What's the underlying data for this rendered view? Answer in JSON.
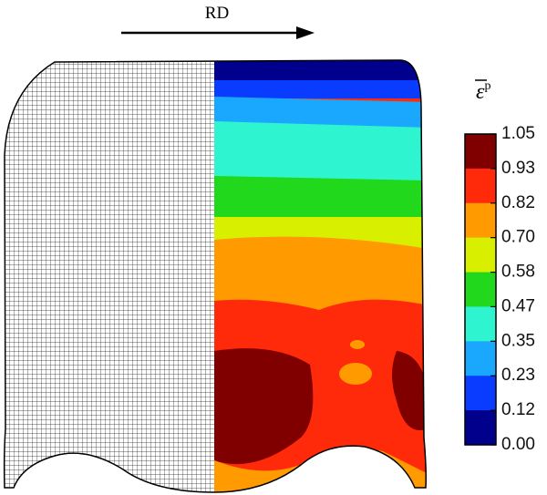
{
  "label": "RD",
  "colorbar": {
    "title_symbol": "ε",
    "title_superscript": "p",
    "ticks": [
      "1.05",
      "0.93",
      "0.82",
      "0.70",
      "0.58",
      "0.47",
      "0.35",
      "0.23",
      "0.12",
      "0.00"
    ],
    "colors": [
      "#800000",
      "#ff2a0a",
      "#ff9a00",
      "#d8f000",
      "#22d81c",
      "#2ef5d0",
      "#1aa8ff",
      "#0a3cff",
      "#00008c"
    ]
  }
}
